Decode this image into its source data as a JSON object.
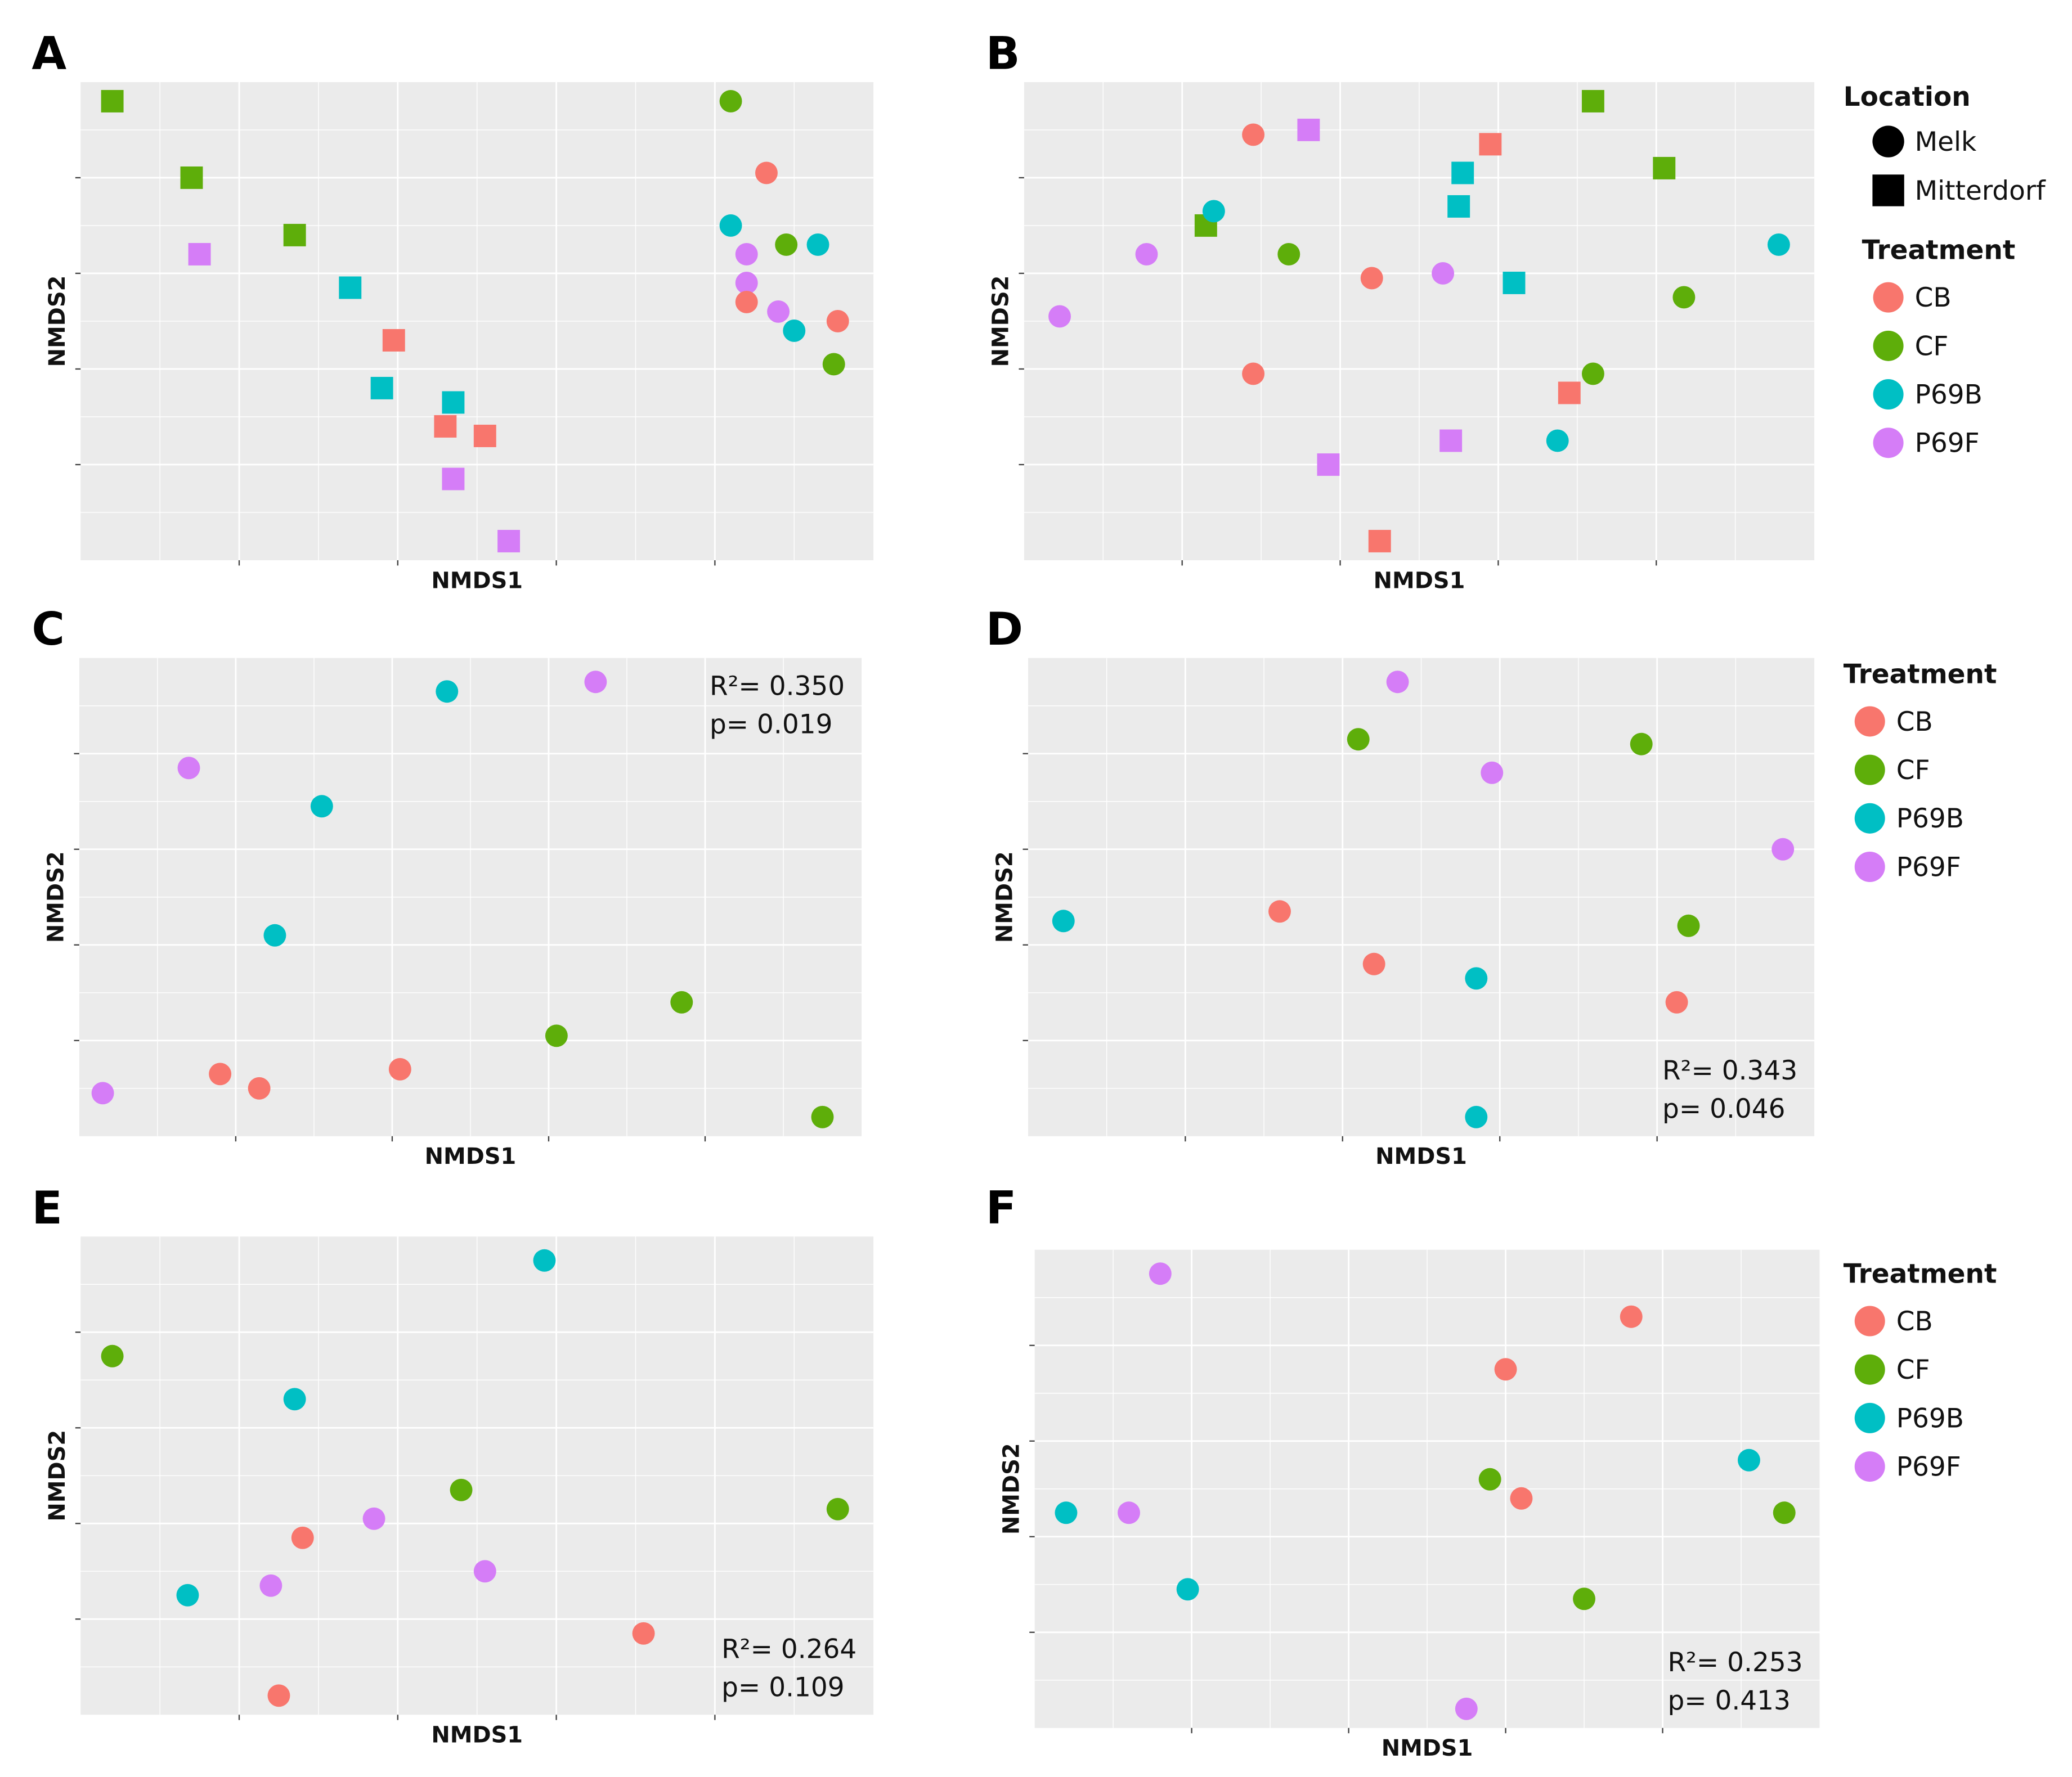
{
  "colors": {
    "CB": "#F8766D",
    "CF": "#5EAE0A",
    "P69B": "#00BFC4",
    "P69F": "#D57DF7"
  },
  "legend_location": {
    "title": "Location",
    "items": [
      {
        "label": "Melk",
        "shape": "circle"
      },
      {
        "label": "Mitterdorf",
        "shape": "square"
      }
    ]
  },
  "legend_treatment": {
    "title": "Treatment",
    "items": [
      "CB",
      "CF",
      "P69B",
      "P69F"
    ]
  },
  "chart_data": [
    {
      "type": "scatter",
      "panel": "A",
      "xlabel": "NMDS1",
      "ylabel": "NMDS2",
      "xlim": [
        0,
        10
      ],
      "ylim": [
        0,
        10
      ],
      "grid": true,
      "stats": null,
      "points": [
        {
          "x": 0.4,
          "y": 9.6,
          "t": "CF",
          "s": "square"
        },
        {
          "x": 1.4,
          "y": 8.0,
          "t": "CF",
          "s": "square"
        },
        {
          "x": 2.7,
          "y": 6.8,
          "t": "CF",
          "s": "square"
        },
        {
          "x": 1.5,
          "y": 6.4,
          "t": "P69F",
          "s": "square"
        },
        {
          "x": 3.4,
          "y": 5.7,
          "t": "P69B",
          "s": "square"
        },
        {
          "x": 3.95,
          "y": 4.6,
          "t": "CB",
          "s": "square"
        },
        {
          "x": 3.8,
          "y": 3.6,
          "t": "P69B",
          "s": "square"
        },
        {
          "x": 4.7,
          "y": 3.3,
          "t": "P69B",
          "s": "square"
        },
        {
          "x": 4.6,
          "y": 2.8,
          "t": "CB",
          "s": "square"
        },
        {
          "x": 5.1,
          "y": 2.6,
          "t": "CB",
          "s": "square"
        },
        {
          "x": 4.7,
          "y": 1.7,
          "t": "P69F",
          "s": "square"
        },
        {
          "x": 5.4,
          "y": 0.4,
          "t": "P69F",
          "s": "square"
        },
        {
          "x": 8.2,
          "y": 9.6,
          "t": "CF",
          "s": "circle"
        },
        {
          "x": 8.65,
          "y": 8.1,
          "t": "CB",
          "s": "circle"
        },
        {
          "x": 8.2,
          "y": 7.0,
          "t": "P69B",
          "s": "circle"
        },
        {
          "x": 8.9,
          "y": 6.6,
          "t": "CF",
          "s": "circle"
        },
        {
          "x": 9.3,
          "y": 6.6,
          "t": "P69B",
          "s": "circle"
        },
        {
          "x": 8.4,
          "y": 6.4,
          "t": "P69F",
          "s": "circle"
        },
        {
          "x": 8.4,
          "y": 5.8,
          "t": "P69F",
          "s": "circle"
        },
        {
          "x": 8.4,
          "y": 5.4,
          "t": "CB",
          "s": "circle"
        },
        {
          "x": 8.8,
          "y": 5.2,
          "t": "P69F",
          "s": "circle"
        },
        {
          "x": 9.55,
          "y": 5.0,
          "t": "CB",
          "s": "circle"
        },
        {
          "x": 9.0,
          "y": 4.8,
          "t": "P69B",
          "s": "circle"
        },
        {
          "x": 9.5,
          "y": 4.1,
          "t": "CF",
          "s": "circle"
        }
      ]
    },
    {
      "type": "scatter",
      "panel": "B",
      "xlabel": "NMDS1",
      "ylabel": "NMDS2",
      "xlim": [
        0,
        10
      ],
      "ylim": [
        0,
        10
      ],
      "grid": true,
      "stats": null,
      "legend": "right (Location, Treatment)",
      "points": [
        {
          "x": 2.9,
          "y": 8.9,
          "t": "CB",
          "s": "circle"
        },
        {
          "x": 3.6,
          "y": 9.0,
          "t": "P69F",
          "s": "square"
        },
        {
          "x": 5.9,
          "y": 8.7,
          "t": "CB",
          "s": "square"
        },
        {
          "x": 7.2,
          "y": 9.6,
          "t": "CF",
          "s": "square"
        },
        {
          "x": 8.1,
          "y": 8.2,
          "t": "CF",
          "s": "square"
        },
        {
          "x": 5.55,
          "y": 8.1,
          "t": "P69B",
          "s": "square"
        },
        {
          "x": 5.5,
          "y": 7.4,
          "t": "P69B",
          "s": "square"
        },
        {
          "x": 2.3,
          "y": 7.0,
          "t": "CF",
          "s": "square"
        },
        {
          "x": 2.4,
          "y": 7.3,
          "t": "P69B",
          "s": "circle"
        },
        {
          "x": 1.55,
          "y": 6.4,
          "t": "P69F",
          "s": "circle"
        },
        {
          "x": 3.35,
          "y": 6.4,
          "t": "CF",
          "s": "circle"
        },
        {
          "x": 4.4,
          "y": 5.9,
          "t": "CB",
          "s": "circle"
        },
        {
          "x": 5.3,
          "y": 6.0,
          "t": "P69F",
          "s": "circle"
        },
        {
          "x": 6.2,
          "y": 5.8,
          "t": "P69B",
          "s": "square"
        },
        {
          "x": 9.55,
          "y": 6.6,
          "t": "P69B",
          "s": "circle"
        },
        {
          "x": 8.35,
          "y": 5.5,
          "t": "CF",
          "s": "circle"
        },
        {
          "x": 0.45,
          "y": 5.1,
          "t": "P69F",
          "s": "circle"
        },
        {
          "x": 2.9,
          "y": 3.9,
          "t": "CB",
          "s": "circle"
        },
        {
          "x": 7.2,
          "y": 3.9,
          "t": "CF",
          "s": "circle"
        },
        {
          "x": 6.9,
          "y": 3.5,
          "t": "CB",
          "s": "square"
        },
        {
          "x": 5.4,
          "y": 2.5,
          "t": "P69F",
          "s": "square"
        },
        {
          "x": 6.75,
          "y": 2.5,
          "t": "P69B",
          "s": "circle"
        },
        {
          "x": 3.85,
          "y": 2.0,
          "t": "P69F",
          "s": "square"
        },
        {
          "x": 4.5,
          "y": 0.4,
          "t": "CB",
          "s": "square"
        }
      ]
    },
    {
      "type": "scatter",
      "panel": "C",
      "xlabel": "NMDS1",
      "ylabel": "NMDS2",
      "xlim": [
        0,
        10
      ],
      "ylim": [
        0,
        10
      ],
      "grid": true,
      "stats": {
        "r2": "R²= 0.350",
        "p": "p= 0.019",
        "position": "top-right"
      },
      "points": [
        {
          "x": 4.7,
          "y": 9.3,
          "t": "P69B",
          "s": "circle"
        },
        {
          "x": 6.6,
          "y": 9.5,
          "t": "P69F",
          "s": "circle"
        },
        {
          "x": 1.4,
          "y": 7.7,
          "t": "P69F",
          "s": "circle"
        },
        {
          "x": 3.1,
          "y": 6.9,
          "t": "P69B",
          "s": "circle"
        },
        {
          "x": 2.5,
          "y": 4.2,
          "t": "P69B",
          "s": "circle"
        },
        {
          "x": 7.7,
          "y": 2.8,
          "t": "CF",
          "s": "circle"
        },
        {
          "x": 6.1,
          "y": 2.1,
          "t": "CF",
          "s": "circle"
        },
        {
          "x": 4.1,
          "y": 1.4,
          "t": "CB",
          "s": "circle"
        },
        {
          "x": 1.8,
          "y": 1.3,
          "t": "CB",
          "s": "circle"
        },
        {
          "x": 2.3,
          "y": 1.0,
          "t": "CB",
          "s": "circle"
        },
        {
          "x": 0.3,
          "y": 0.9,
          "t": "P69F",
          "s": "circle"
        },
        {
          "x": 9.5,
          "y": 0.4,
          "t": "CF",
          "s": "circle"
        }
      ]
    },
    {
      "type": "scatter",
      "panel": "D",
      "xlabel": "NMDS1",
      "ylabel": "NMDS2",
      "xlim": [
        0,
        10
      ],
      "ylim": [
        0,
        10
      ],
      "grid": true,
      "legend": "right (Treatment)",
      "stats": {
        "r2": "R²= 0.343",
        "p": "p= 0.046",
        "position": "bottom-right"
      },
      "points": [
        {
          "x": 4.7,
          "y": 9.5,
          "t": "P69F",
          "s": "circle"
        },
        {
          "x": 4.2,
          "y": 8.3,
          "t": "CF",
          "s": "circle"
        },
        {
          "x": 7.8,
          "y": 8.2,
          "t": "CF",
          "s": "circle"
        },
        {
          "x": 5.9,
          "y": 7.6,
          "t": "P69F",
          "s": "circle"
        },
        {
          "x": 9.6,
          "y": 6.0,
          "t": "P69F",
          "s": "circle"
        },
        {
          "x": 0.45,
          "y": 4.5,
          "t": "P69B",
          "s": "circle"
        },
        {
          "x": 3.2,
          "y": 4.7,
          "t": "CB",
          "s": "circle"
        },
        {
          "x": 8.4,
          "y": 4.4,
          "t": "CF",
          "s": "circle"
        },
        {
          "x": 4.4,
          "y": 3.6,
          "t": "CB",
          "s": "circle"
        },
        {
          "x": 5.7,
          "y": 3.3,
          "t": "P69B",
          "s": "circle"
        },
        {
          "x": 8.25,
          "y": 2.8,
          "t": "CB",
          "s": "circle"
        },
        {
          "x": 5.7,
          "y": 0.4,
          "t": "P69B",
          "s": "circle"
        }
      ]
    },
    {
      "type": "scatter",
      "panel": "E",
      "xlabel": "NMDS1",
      "ylabel": "NMDS2",
      "xlim": [
        0,
        10
      ],
      "ylim": [
        0,
        10
      ],
      "grid": true,
      "stats": {
        "r2": "R²= 0.264",
        "p": "p= 0.109",
        "position": "bottom-right"
      },
      "points": [
        {
          "x": 5.85,
          "y": 9.5,
          "t": "P69B",
          "s": "circle"
        },
        {
          "x": 0.4,
          "y": 7.5,
          "t": "CF",
          "s": "circle"
        },
        {
          "x": 2.7,
          "y": 6.6,
          "t": "P69B",
          "s": "circle"
        },
        {
          "x": 4.8,
          "y": 4.7,
          "t": "CF",
          "s": "circle"
        },
        {
          "x": 9.55,
          "y": 4.3,
          "t": "CF",
          "s": "circle"
        },
        {
          "x": 3.7,
          "y": 4.1,
          "t": "P69F",
          "s": "circle"
        },
        {
          "x": 2.8,
          "y": 3.7,
          "t": "CB",
          "s": "circle"
        },
        {
          "x": 5.1,
          "y": 3.0,
          "t": "P69F",
          "s": "circle"
        },
        {
          "x": 2.4,
          "y": 2.7,
          "t": "P69F",
          "s": "circle"
        },
        {
          "x": 1.35,
          "y": 2.5,
          "t": "P69B",
          "s": "circle"
        },
        {
          "x": 7.1,
          "y": 1.7,
          "t": "CB",
          "s": "circle"
        },
        {
          "x": 2.5,
          "y": 0.4,
          "t": "CB",
          "s": "circle"
        }
      ]
    },
    {
      "type": "scatter",
      "panel": "F",
      "xlabel": "NMDS1",
      "ylabel": "NMDS2",
      "xlim": [
        0,
        10
      ],
      "ylim": [
        0,
        10
      ],
      "grid": true,
      "legend": "right (Treatment)",
      "stats": {
        "r2": "R²= 0.253",
        "p": "p= 0.413",
        "position": "bottom-right"
      },
      "points": [
        {
          "x": 1.6,
          "y": 9.5,
          "t": "P69F",
          "s": "circle"
        },
        {
          "x": 7.6,
          "y": 8.6,
          "t": "CB",
          "s": "circle"
        },
        {
          "x": 6.0,
          "y": 7.5,
          "t": "CB",
          "s": "circle"
        },
        {
          "x": 9.1,
          "y": 5.6,
          "t": "P69B",
          "s": "circle"
        },
        {
          "x": 5.8,
          "y": 5.2,
          "t": "CF",
          "s": "circle"
        },
        {
          "x": 6.2,
          "y": 4.8,
          "t": "CB",
          "s": "circle"
        },
        {
          "x": 0.4,
          "y": 4.5,
          "t": "P69B",
          "s": "circle"
        },
        {
          "x": 1.2,
          "y": 4.5,
          "t": "P69F",
          "s": "circle"
        },
        {
          "x": 9.55,
          "y": 4.5,
          "t": "CF",
          "s": "circle"
        },
        {
          "x": 1.95,
          "y": 2.9,
          "t": "P69B",
          "s": "circle"
        },
        {
          "x": 7.0,
          "y": 2.7,
          "t": "CF",
          "s": "circle"
        },
        {
          "x": 5.5,
          "y": 0.4,
          "t": "P69F",
          "s": "circle"
        }
      ]
    }
  ]
}
